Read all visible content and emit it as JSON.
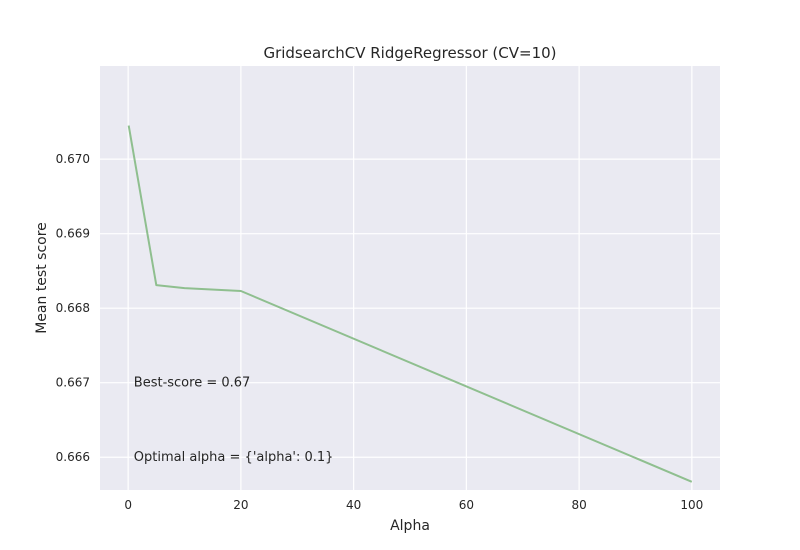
{
  "chart_data": {
    "type": "line",
    "title": "GridsearchCV RidgeRegressor (CV=10)",
    "xlabel": "Alpha",
    "ylabel": "Mean test score",
    "xlim": [
      -4.995,
      104.995
    ],
    "ylim": [
      0.66556,
      0.67125
    ],
    "xticks": [
      0,
      20,
      40,
      60,
      80,
      100
    ],
    "xtick_labels": [
      "0",
      "20",
      "40",
      "60",
      "80",
      "100"
    ],
    "yticks": [
      0.666,
      0.667,
      0.668,
      0.669,
      0.67
    ],
    "ytick_labels": [
      "0.666",
      "0.667",
      "0.668",
      "0.669",
      "0.670"
    ],
    "grid": true,
    "series": [
      {
        "color": "#8fbf8f",
        "x": [
          0.1,
          5,
          10,
          20,
          100
        ],
        "y": [
          0.67045,
          0.66831,
          0.66827,
          0.66823,
          0.66567
        ]
      }
    ],
    "annotations": [
      {
        "text": "Best-score = 0.67",
        "x": 1,
        "y": 0.667
      },
      {
        "text": "Optimal alpha = {'alpha': 0.1}",
        "x": 1,
        "y": 0.666
      }
    ]
  },
  "colors": {
    "plot_background": "#eaeaf2",
    "grid": "#ffffff",
    "text": "#262626"
  }
}
